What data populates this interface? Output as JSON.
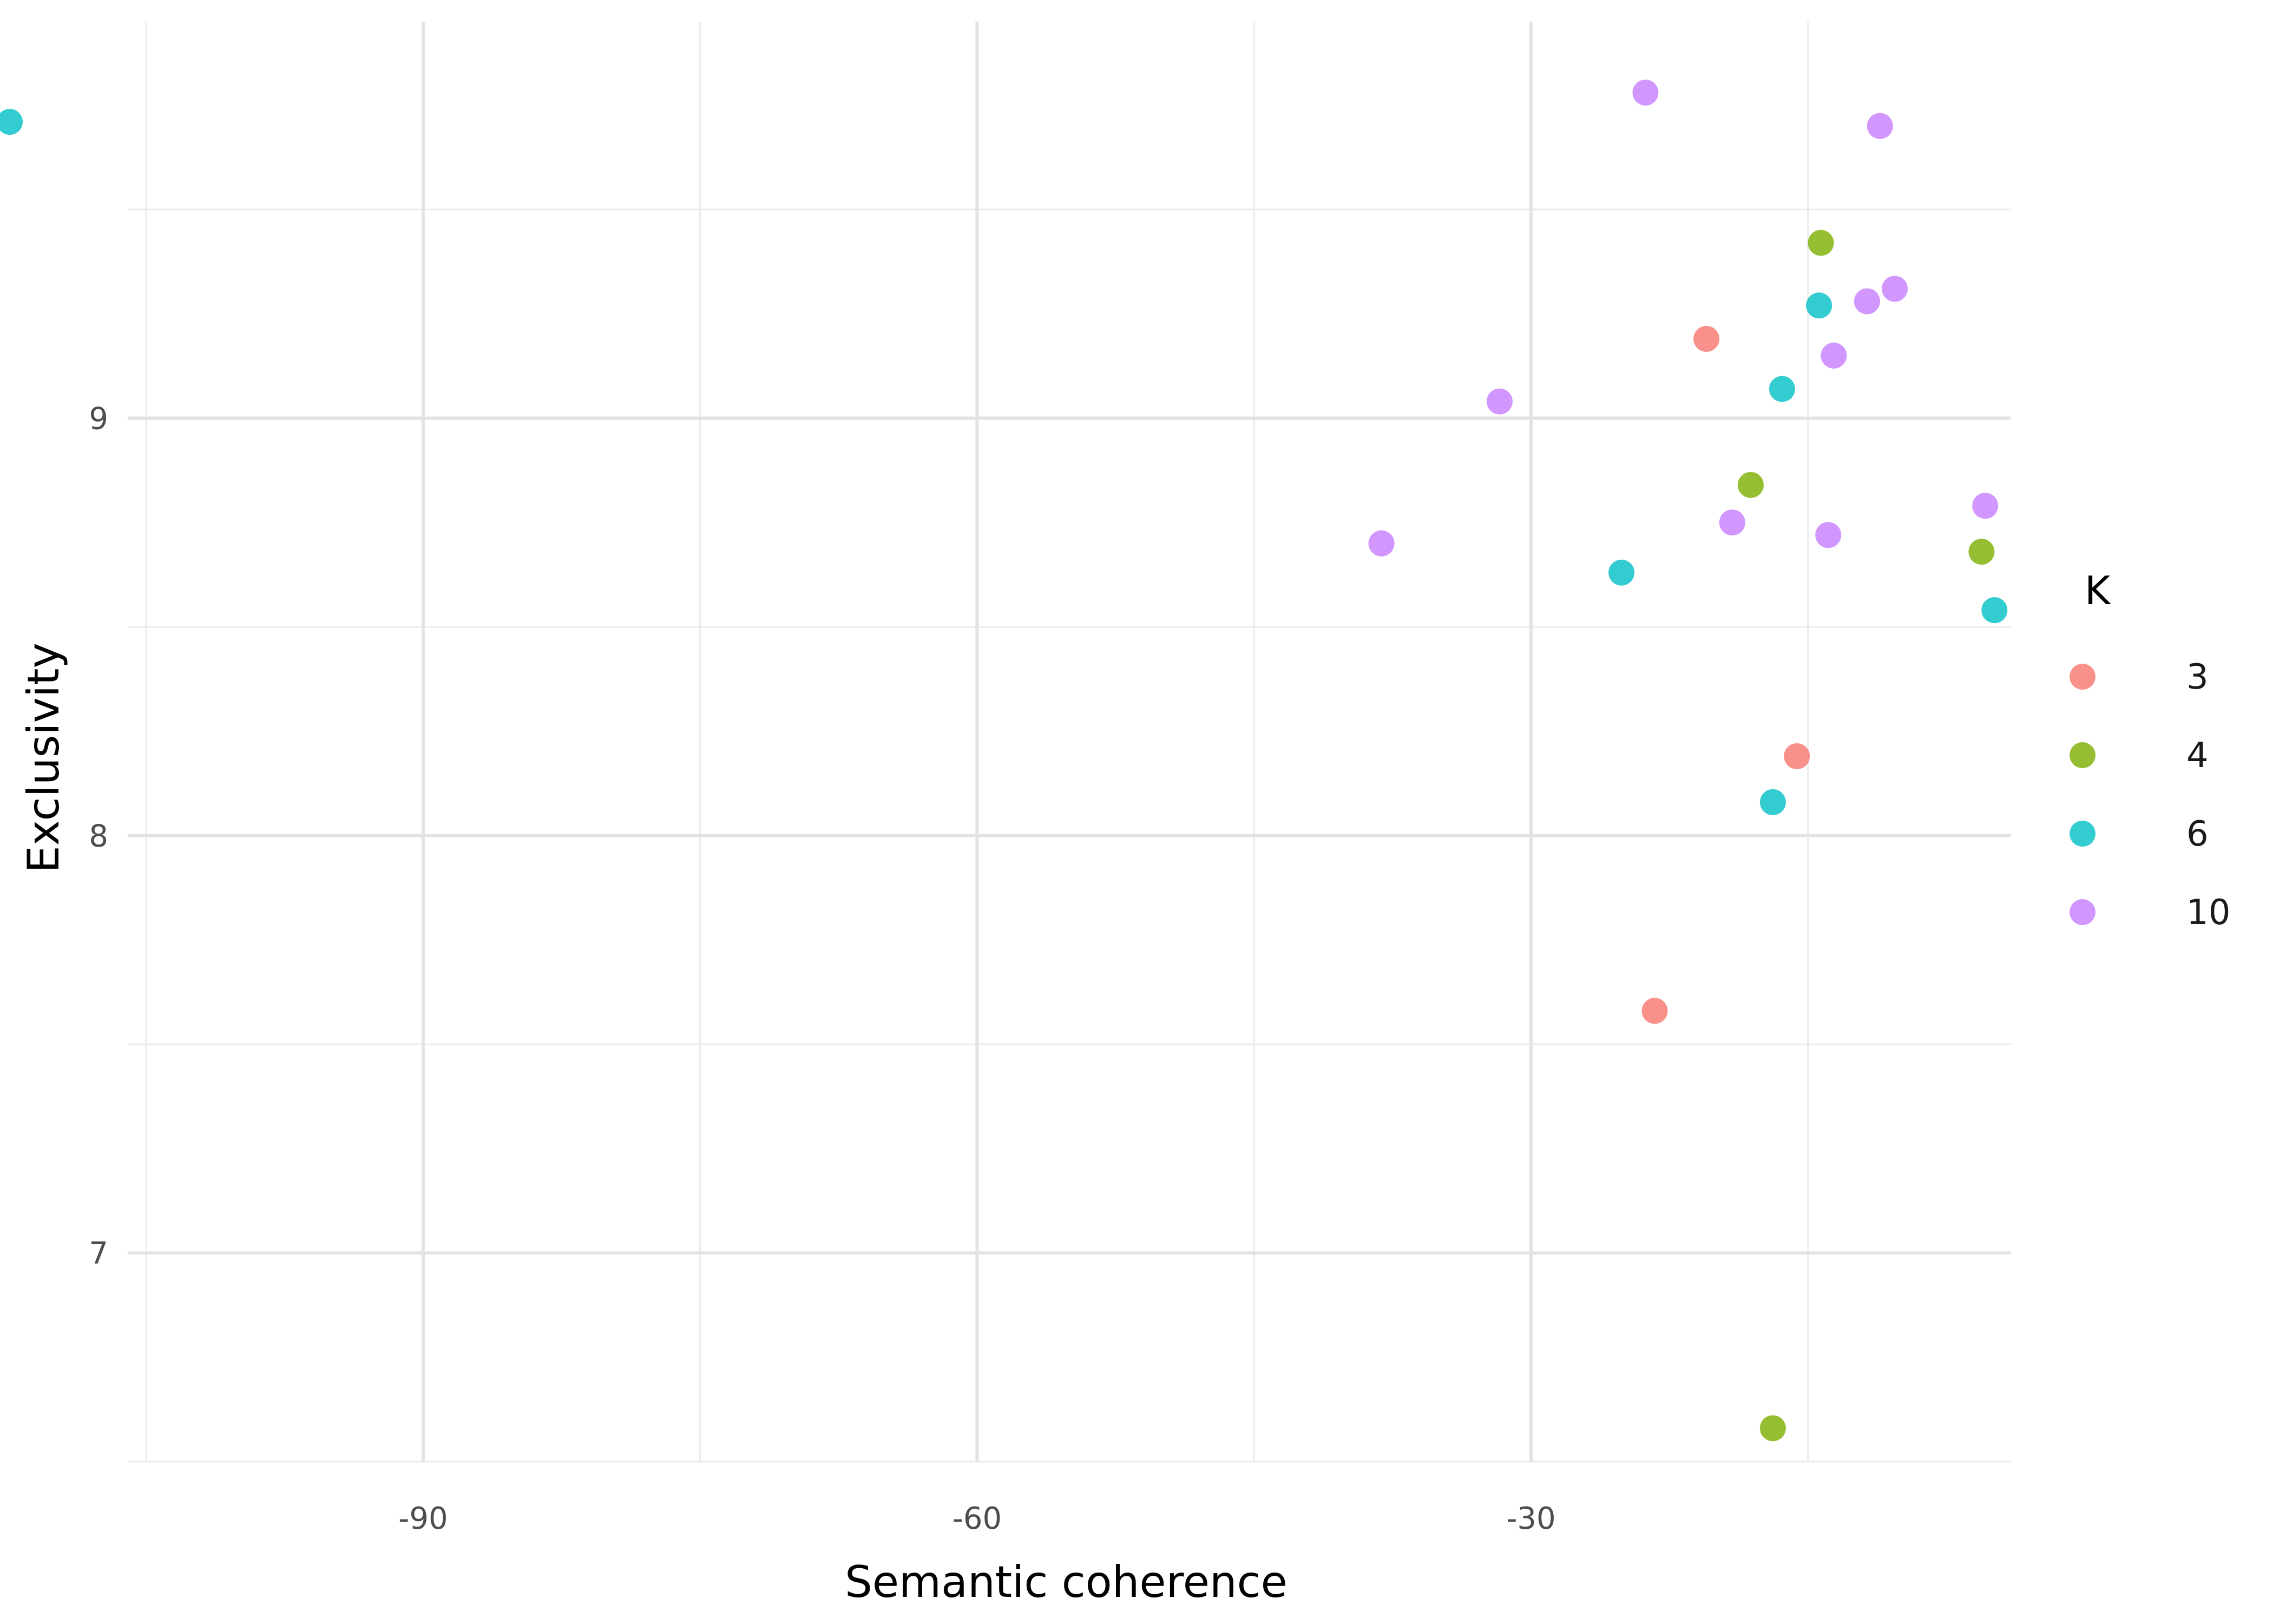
{
  "chart_data": {
    "type": "scatter",
    "xlabel": "Semantic coherence",
    "ylabel": "Exclusivity",
    "xlim": [
      -106,
      -4
    ],
    "ylim": [
      6.5,
      9.95
    ],
    "x_ticks": [
      -90,
      -60,
      -30
    ],
    "x_tick_labels": [
      "-90",
      "-60",
      "-30"
    ],
    "y_ticks": [
      7,
      8,
      9
    ],
    "y_tick_labels": [
      "7",
      "8",
      "9"
    ],
    "grid": true,
    "legend_position": "right",
    "legend_title": "K",
    "colors": {
      "3": "#F8766D",
      "4": "#7CAE00",
      "6": "#00BFC4",
      "10": "#C77CFF"
    },
    "series": [
      {
        "name": "3",
        "points": [
          [
            -20.5,
            9.19
          ],
          [
            -15.6,
            8.19
          ],
          [
            -23.3,
            7.58
          ]
        ]
      },
      {
        "name": "4",
        "points": [
          [
            -14.3,
            9.42
          ],
          [
            -18.1,
            8.84
          ],
          [
            -5.6,
            8.68
          ],
          [
            -16.9,
            6.58
          ]
        ]
      },
      {
        "name": "6",
        "points": [
          [
            -113.0,
            9.71
          ],
          [
            -14.4,
            9.27
          ],
          [
            -16.4,
            9.07
          ],
          [
            -25.1,
            8.63
          ],
          [
            -4.9,
            8.54
          ],
          [
            -16.9,
            8.08
          ]
        ]
      },
      {
        "name": "10",
        "points": [
          [
            -23.8,
            9.78
          ],
          [
            -11.1,
            9.7
          ],
          [
            -10.3,
            9.31
          ],
          [
            -11.8,
            9.28
          ],
          [
            -13.6,
            9.15
          ],
          [
            -31.7,
            9.04
          ],
          [
            -5.4,
            8.79
          ],
          [
            -19.1,
            8.75
          ],
          [
            -13.9,
            8.72
          ],
          [
            -38.1,
            8.7
          ]
        ]
      }
    ]
  }
}
